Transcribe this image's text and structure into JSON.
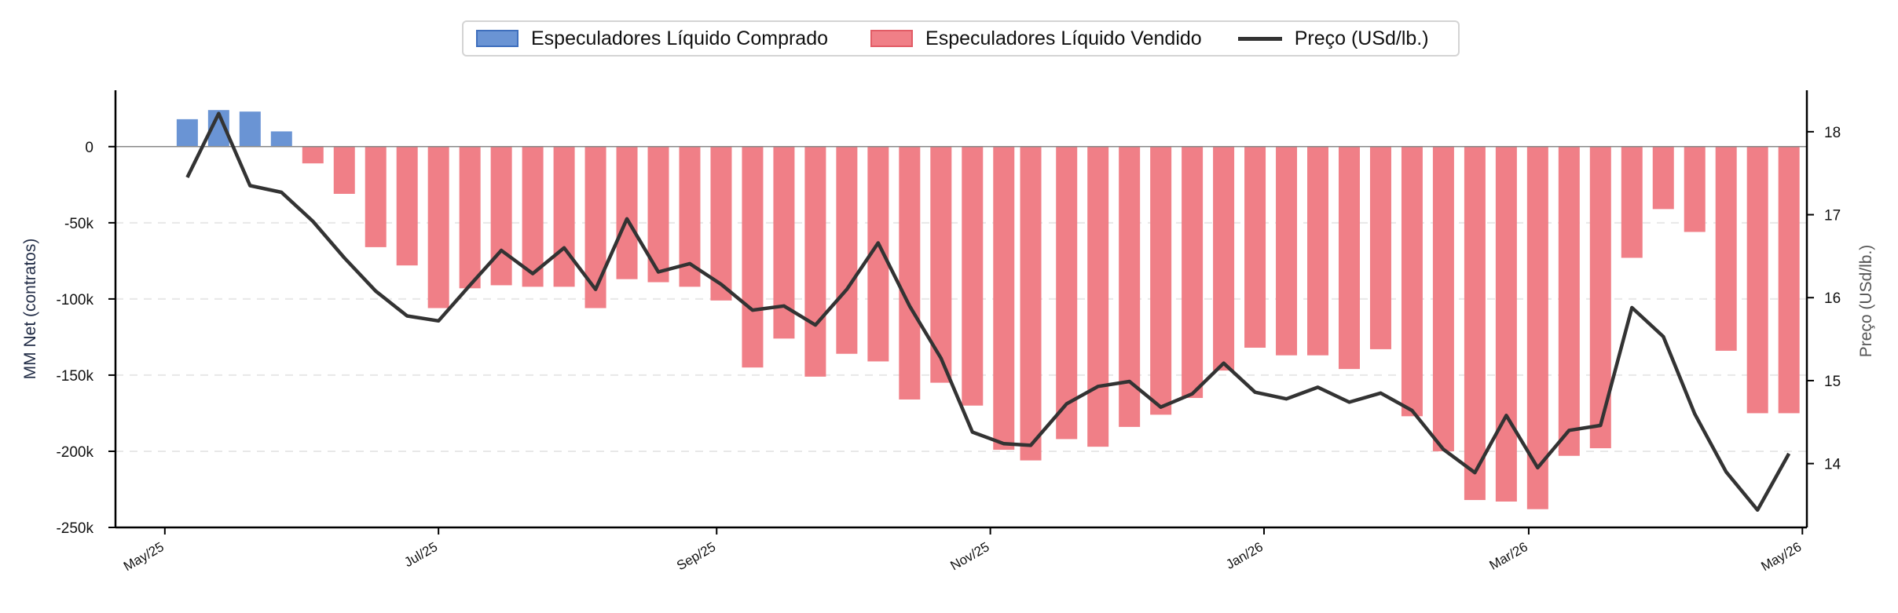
{
  "colors": {
    "long": "#6a94d4",
    "long_edge": "#3f6fbd",
    "short": "#f07f87",
    "short_edge": "#e25c66",
    "price": "#333333",
    "grid": "#e8e8e8"
  },
  "legend": [
    {
      "label": "Especuladores Líquido Comprado",
      "kind": "long"
    },
    {
      "label": "Especuladores Líquido Vendido",
      "kind": "short"
    },
    {
      "label": "Preço (USd/lb.)",
      "kind": "price"
    }
  ],
  "chart_data": {
    "type": "bar",
    "ylabel": "MM Net (contratos)",
    "y2label": "Preço (USd/lb.)",
    "ylim": [
      -250000,
      37000
    ],
    "y2lim": [
      13.23,
      18.5
    ],
    "yticks": [
      0,
      -50000,
      -100000,
      -150000,
      -200000,
      -250000
    ],
    "ytick_labels": [
      "0",
      "-50k",
      "-100k",
      "-150k",
      "-200k",
      "-250k"
    ],
    "y2ticks": [
      14,
      15,
      16,
      17,
      18
    ],
    "y2tick_labels": [
      "14",
      "15",
      "16",
      "17",
      "18"
    ],
    "xlim": [
      "2025-04-20",
      "2026-05-02"
    ],
    "xticks": [
      "2025-05-01",
      "2025-07-01",
      "2025-09-01",
      "2025-11-01",
      "2026-01-01",
      "2026-03-01",
      "2026-05-01"
    ],
    "xtick_labels": [
      "May/25",
      "Jul/25",
      "Sep/25",
      "Nov/25",
      "Jan/26",
      "Mar/26",
      "May/26"
    ],
    "grid": "horizontal dashed",
    "legend_position": "top-center",
    "dates": [
      "2025-05-06",
      "2025-05-13",
      "2025-05-20",
      "2025-05-27",
      "2025-06-03",
      "2025-06-10",
      "2025-06-17",
      "2025-06-24",
      "2025-07-01",
      "2025-07-08",
      "2025-07-15",
      "2025-07-22",
      "2025-07-29",
      "2025-08-05",
      "2025-08-12",
      "2025-08-19",
      "2025-08-26",
      "2025-09-02",
      "2025-09-09",
      "2025-09-16",
      "2025-09-23",
      "2025-09-30",
      "2025-10-07",
      "2025-10-14",
      "2025-10-21",
      "2025-10-28",
      "2025-11-04",
      "2025-11-10",
      "2025-11-18",
      "2025-11-25",
      "2025-12-02",
      "2025-12-09",
      "2025-12-16",
      "2025-12-23",
      "2025-12-30",
      "2026-01-06",
      "2026-01-13",
      "2026-01-20",
      "2026-01-27",
      "2026-02-03",
      "2026-02-10",
      "2026-02-17",
      "2026-02-24",
      "2026-03-03",
      "2026-03-10",
      "2026-03-17",
      "2026-03-24",
      "2026-03-31",
      "2026-04-07",
      "2026-04-14",
      "2026-04-21",
      "2026-04-28"
    ],
    "net_positions": [
      18000,
      24000,
      23000,
      10000,
      -11000,
      -31000,
      -66000,
      -78000,
      -106000,
      -93000,
      -91000,
      -92000,
      -92000,
      -106000,
      -87000,
      -89000,
      -92000,
      -101000,
      -145000,
      -126000,
      -151000,
      -136000,
      -141000,
      -166000,
      -155000,
      -170000,
      -199000,
      -206000,
      -192000,
      -197000,
      -184000,
      -176000,
      -165000,
      -147000,
      -132000,
      -137000,
      -137000,
      -146000,
      -133000,
      -177000,
      -200000,
      -232000,
      -233000,
      -238000,
      -203000,
      -198000,
      -73000,
      -41000,
      -56000,
      -134000,
      -175000,
      -175000
    ],
    "price_dates": [
      "2025-05-06",
      "2025-05-13",
      "2025-05-20",
      "2025-05-27",
      "2025-06-03",
      "2025-06-10",
      "2025-06-17",
      "2025-06-24",
      "2025-07-01",
      "2025-07-08",
      "2025-07-15",
      "2025-07-22",
      "2025-07-29",
      "2025-08-05",
      "2025-08-12",
      "2025-08-19",
      "2025-08-26",
      "2025-09-02",
      "2025-09-09",
      "2025-09-16",
      "2025-09-23",
      "2025-09-30",
      "2025-10-07",
      "2025-10-14",
      "2025-10-21",
      "2025-10-28",
      "2025-11-04",
      "2025-11-10",
      "2025-11-18",
      "2025-11-25",
      "2025-12-02",
      "2025-12-09",
      "2025-12-16",
      "2025-12-23",
      "2025-12-30",
      "2026-01-06",
      "2026-01-13",
      "2026-01-20",
      "2026-01-27",
      "2026-02-03",
      "2026-02-10",
      "2026-02-17",
      "2026-02-24",
      "2026-03-03",
      "2026-03-10",
      "2026-03-17",
      "2026-03-24",
      "2026-03-31",
      "2026-04-07",
      "2026-04-14",
      "2026-04-21",
      "2026-04-28"
    ],
    "price": [
      17.45,
      18.22,
      17.35,
      17.27,
      16.92,
      16.48,
      16.08,
      15.78,
      15.72,
      16.15,
      16.57,
      16.29,
      16.6,
      16.1,
      16.95,
      16.31,
      16.41,
      16.16,
      15.85,
      15.9,
      15.67,
      16.1,
      16.66,
      15.9,
      15.27,
      14.38,
      14.24,
      14.22,
      14.72,
      14.93,
      14.99,
      14.68,
      14.84,
      15.21,
      14.86,
      14.78,
      14.92,
      14.74,
      14.85,
      14.64,
      14.17,
      13.89,
      14.58,
      13.95,
      14.4,
      14.46,
      15.88,
      15.53,
      14.6,
      13.9,
      13.44,
      14.12
    ]
  }
}
